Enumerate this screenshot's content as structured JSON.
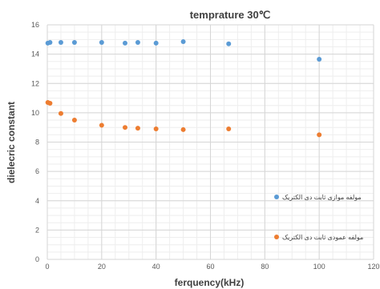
{
  "chart_data": {
    "type": "scatter",
    "title": "temprature 30℃",
    "xlabel": "ferquency(kHz)",
    "ylabel": "dielecric constant",
    "xlim": [
      0,
      120
    ],
    "ylim": [
      0,
      16
    ],
    "x_ticks": [
      0,
      20,
      40,
      60,
      80,
      100,
      120
    ],
    "y_ticks": [
      0,
      2,
      4,
      6,
      8,
      10,
      12,
      14,
      16
    ],
    "grid": true,
    "legend_position": "right",
    "series": [
      {
        "name": "مولفه موازی ثابت دی الکتریک",
        "color": "#5B9BD5",
        "points": [
          {
            "x": 0.2,
            "y": 14.75
          },
          {
            "x": 1,
            "y": 14.8
          },
          {
            "x": 5,
            "y": 14.8
          },
          {
            "x": 10,
            "y": 14.8
          },
          {
            "x": 20,
            "y": 14.8
          },
          {
            "x": 28.6,
            "y": 14.75
          },
          {
            "x": 33.3,
            "y": 14.8
          },
          {
            "x": 40,
            "y": 14.75
          },
          {
            "x": 50,
            "y": 14.85
          },
          {
            "x": 66.7,
            "y": 14.7
          },
          {
            "x": 100,
            "y": 13.65
          }
        ]
      },
      {
        "name": "مولفه عمودی ثابت دی الکتریک",
        "color": "#ED7D31",
        "points": [
          {
            "x": 0.2,
            "y": 10.7
          },
          {
            "x": 1,
            "y": 10.65
          },
          {
            "x": 5,
            "y": 9.95
          },
          {
            "x": 10,
            "y": 9.5
          },
          {
            "x": 20,
            "y": 9.15
          },
          {
            "x": 28.6,
            "y": 9.0
          },
          {
            "x": 33.3,
            "y": 8.95
          },
          {
            "x": 40,
            "y": 8.9
          },
          {
            "x": 50,
            "y": 8.85
          },
          {
            "x": 66.7,
            "y": 8.9
          },
          {
            "x": 100,
            "y": 8.5
          }
        ]
      }
    ]
  }
}
